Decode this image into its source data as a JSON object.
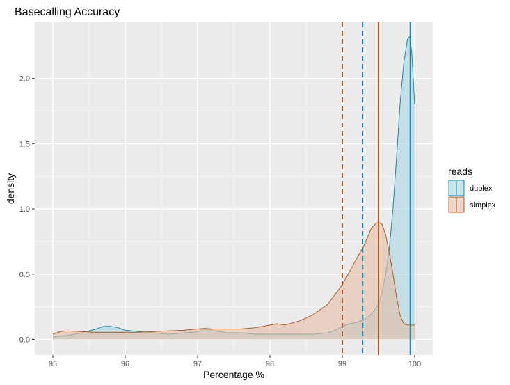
{
  "chart_data": {
    "type": "area",
    "title": "Basecalling Accuracy",
    "xlabel": "Percentage %",
    "ylabel": "density",
    "xlim": [
      94.75,
      100.25
    ],
    "ylim": [
      -0.12,
      2.43
    ],
    "x_ticks": [
      {
        "value": 95,
        "label": "95"
      },
      {
        "value": 96,
        "label": "96"
      },
      {
        "value": 97,
        "label": "97"
      },
      {
        "value": 98,
        "label": "98"
      },
      {
        "value": 99,
        "label": "99"
      },
      {
        "value": 100,
        "label": "100"
      }
    ],
    "y_ticks": [
      {
        "value": 0.0,
        "label": "0.0"
      },
      {
        "value": 0.5,
        "label": "0.5"
      },
      {
        "value": 1.0,
        "label": "1.0"
      },
      {
        "value": 1.5,
        "label": "1.5"
      },
      {
        "value": 2.0,
        "label": "2.0"
      }
    ],
    "grid": true,
    "legend": {
      "title": "reads",
      "position": "right"
    },
    "series": [
      {
        "name": "duplex",
        "fill": "#a8d6e0",
        "stroke": "#1a87a8",
        "x": [
          95.0,
          95.2,
          95.4,
          95.6,
          95.7,
          95.8,
          95.9,
          96.0,
          96.2,
          96.4,
          96.6,
          96.8,
          97.0,
          97.1,
          97.2,
          97.4,
          97.6,
          97.8,
          98.0,
          98.2,
          98.4,
          98.6,
          98.8,
          98.9,
          99.0,
          99.1,
          99.2,
          99.3,
          99.4,
          99.5,
          99.55,
          99.6,
          99.65,
          99.7,
          99.75,
          99.8,
          99.85,
          99.9,
          99.93,
          99.96,
          100.0
        ],
        "y": [
          0.02,
          0.03,
          0.05,
          0.08,
          0.1,
          0.1,
          0.09,
          0.07,
          0.06,
          0.05,
          0.04,
          0.05,
          0.06,
          0.08,
          0.07,
          0.05,
          0.05,
          0.04,
          0.04,
          0.04,
          0.04,
          0.04,
          0.05,
          0.07,
          0.1,
          0.12,
          0.13,
          0.15,
          0.19,
          0.27,
          0.36,
          0.5,
          0.7,
          1.0,
          1.4,
          1.82,
          2.12,
          2.3,
          2.32,
          2.2,
          1.8
        ]
      },
      {
        "name": "simplex",
        "fill": "#e5bea6",
        "stroke": "#b2591b",
        "x": [
          95.0,
          95.1,
          95.2,
          95.4,
          95.6,
          95.8,
          96.0,
          96.2,
          96.4,
          96.6,
          96.8,
          97.0,
          97.1,
          97.2,
          97.3,
          97.4,
          97.6,
          97.8,
          98.0,
          98.1,
          98.2,
          98.4,
          98.6,
          98.8,
          99.0,
          99.1,
          99.2,
          99.3,
          99.4,
          99.45,
          99.5,
          99.55,
          99.6,
          99.65,
          99.7,
          99.75,
          99.8,
          99.85,
          99.9,
          100.0
        ],
        "y": [
          0.04,
          0.06,
          0.065,
          0.06,
          0.055,
          0.055,
          0.055,
          0.055,
          0.06,
          0.065,
          0.07,
          0.08,
          0.085,
          0.08,
          0.08,
          0.08,
          0.08,
          0.09,
          0.11,
          0.12,
          0.11,
          0.14,
          0.19,
          0.27,
          0.42,
          0.52,
          0.62,
          0.72,
          0.85,
          0.88,
          0.9,
          0.88,
          0.8,
          0.66,
          0.5,
          0.32,
          0.18,
          0.12,
          0.11,
          0.11
        ]
      }
    ],
    "vlines": [
      {
        "series": "simplex",
        "stat": "median",
        "x": 99.0,
        "style": "dashed",
        "color": "#b2591b"
      },
      {
        "series": "duplex",
        "stat": "median",
        "x": 99.28,
        "style": "dashed",
        "color": "#1a87a8"
      },
      {
        "series": "simplex",
        "stat": "mean",
        "x": 99.5,
        "style": "solid",
        "color": "#b2591b"
      },
      {
        "series": "duplex",
        "stat": "mean",
        "x": 99.94,
        "style": "solid",
        "color": "#1a87a8"
      }
    ]
  }
}
